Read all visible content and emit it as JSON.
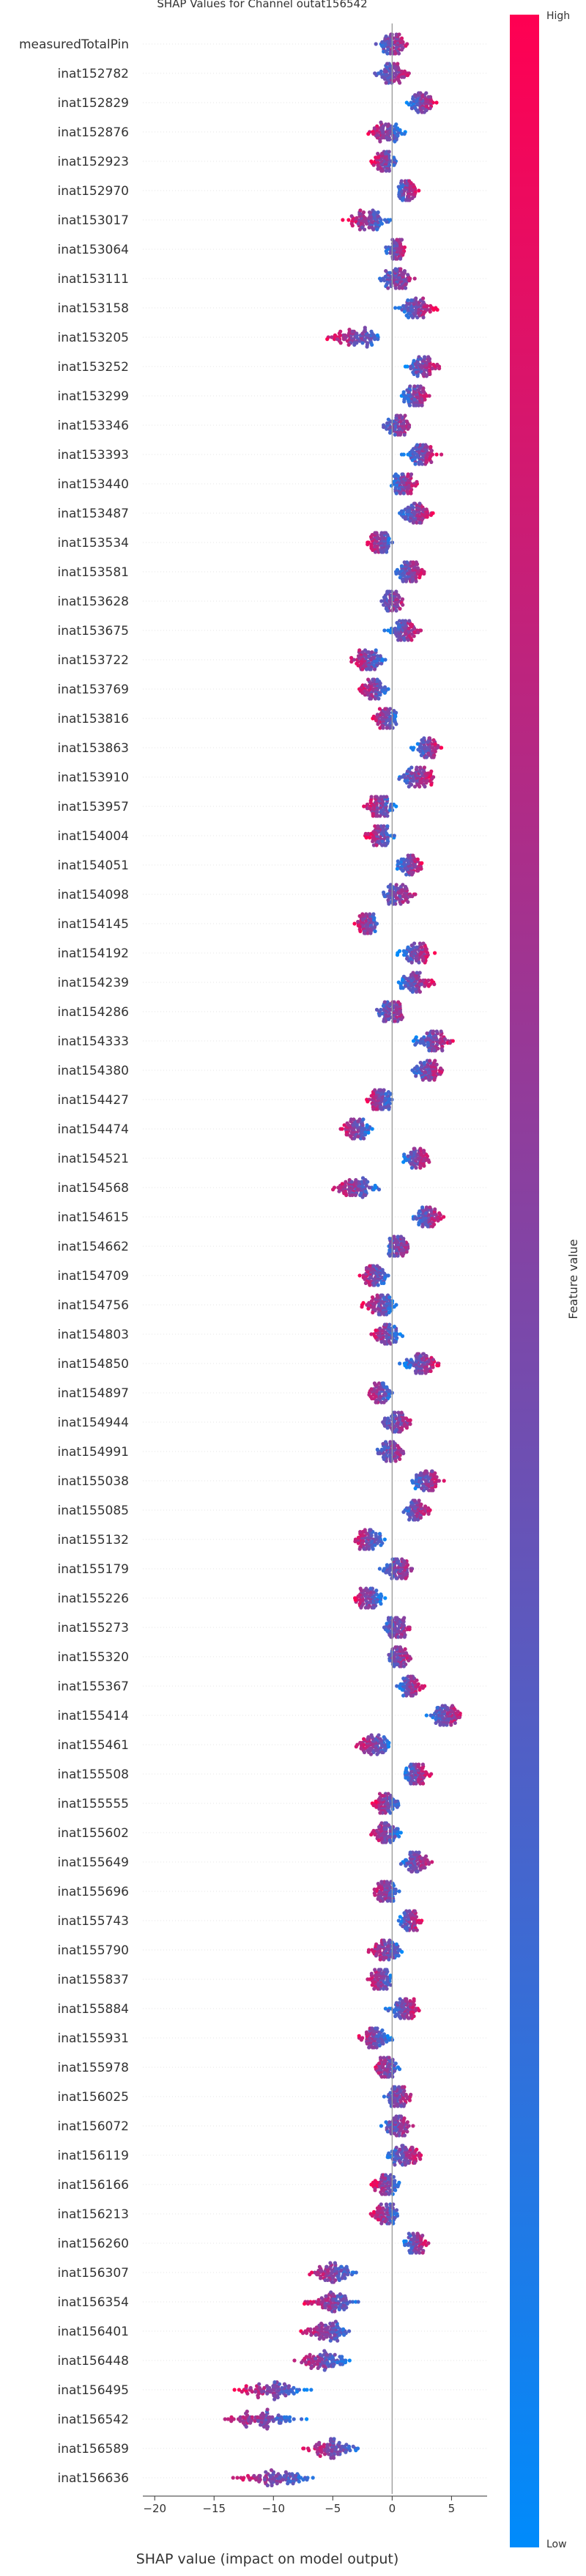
{
  "chart_data": {
    "type": "scatter",
    "subtype": "shap-beeswarm",
    "title": "SHAP Values for Channel outat156542",
    "xlabel": "SHAP value (impact on model output)",
    "xlim": [
      -21,
      8
    ],
    "xticks": [
      -20,
      -15,
      -10,
      -5,
      0,
      5
    ],
    "xtick_labels": [
      "−20",
      "−15",
      "−10",
      "−5",
      "0",
      "5"
    ],
    "colorbar": {
      "label": "Feature value",
      "high": "High",
      "low": "Low",
      "low_color": "#008bfb",
      "high_color": "#ff0052"
    },
    "zero_line_color": "#999999",
    "features": [
      {
        "name": "measuredTotalPin",
        "center": 0.0,
        "spread": 1.5
      },
      {
        "name": "inat152782",
        "center": 0.0,
        "spread": 1.8
      },
      {
        "name": "inat152829",
        "center": 2.5,
        "spread": 1.6
      },
      {
        "name": "inat152876",
        "center": -0.5,
        "spread": 1.8
      },
      {
        "name": "inat152923",
        "center": -0.5,
        "spread": 1.4
      },
      {
        "name": "inat152970",
        "center": 1.2,
        "spread": 1.2
      },
      {
        "name": "inat153017",
        "center": -2.0,
        "spread": 2.5
      },
      {
        "name": "inat153064",
        "center": 0.3,
        "spread": 1.0
      },
      {
        "name": "inat153111",
        "center": 0.5,
        "spread": 2.0
      },
      {
        "name": "inat153158",
        "center": 2.0,
        "spread": 2.0
      },
      {
        "name": "inat153205",
        "center": -3.0,
        "spread": 3.0
      },
      {
        "name": "inat153252",
        "center": 2.5,
        "spread": 1.8
      },
      {
        "name": "inat153299",
        "center": 2.0,
        "spread": 1.5
      },
      {
        "name": "inat153346",
        "center": 0.5,
        "spread": 1.5
      },
      {
        "name": "inat153393",
        "center": 2.5,
        "spread": 1.8
      },
      {
        "name": "inat153440",
        "center": 1.0,
        "spread": 1.5
      },
      {
        "name": "inat153487",
        "center": 2.0,
        "spread": 2.0
      },
      {
        "name": "inat153534",
        "center": -1.0,
        "spread": 1.5
      },
      {
        "name": "inat153581",
        "center": 1.5,
        "spread": 1.5
      },
      {
        "name": "inat153628",
        "center": 0.0,
        "spread": 1.2
      },
      {
        "name": "inat153675",
        "center": 1.0,
        "spread": 1.8
      },
      {
        "name": "inat153722",
        "center": -2.0,
        "spread": 2.0
      },
      {
        "name": "inat153769",
        "center": -1.5,
        "spread": 1.5
      },
      {
        "name": "inat153816",
        "center": -0.5,
        "spread": 1.5
      },
      {
        "name": "inat153863",
        "center": 3.0,
        "spread": 1.5
      },
      {
        "name": "inat153910",
        "center": 2.0,
        "spread": 2.0
      },
      {
        "name": "inat153957",
        "center": -1.0,
        "spread": 1.8
      },
      {
        "name": "inat154004",
        "center": -1.0,
        "spread": 1.5
      },
      {
        "name": "inat154051",
        "center": 1.5,
        "spread": 1.4
      },
      {
        "name": "inat154098",
        "center": 0.5,
        "spread": 1.6
      },
      {
        "name": "inat154145",
        "center": -2.0,
        "spread": 1.4
      },
      {
        "name": "inat154192",
        "center": 2.0,
        "spread": 1.8
      },
      {
        "name": "inat154239",
        "center": 2.0,
        "spread": 2.0
      },
      {
        "name": "inat154286",
        "center": 0.0,
        "spread": 1.6
      },
      {
        "name": "inat154333",
        "center": 3.5,
        "spread": 2.2
      },
      {
        "name": "inat154380",
        "center": 3.0,
        "spread": 2.0
      },
      {
        "name": "inat154427",
        "center": -1.0,
        "spread": 1.5
      },
      {
        "name": "inat154474",
        "center": -3.0,
        "spread": 1.6
      },
      {
        "name": "inat154521",
        "center": 2.0,
        "spread": 1.5
      },
      {
        "name": "inat154568",
        "center": -3.0,
        "spread": 2.6
      },
      {
        "name": "inat154615",
        "center": 3.0,
        "spread": 1.6
      },
      {
        "name": "inat154662",
        "center": 0.5,
        "spread": 1.4
      },
      {
        "name": "inat154709",
        "center": -1.5,
        "spread": 1.6
      },
      {
        "name": "inat154756",
        "center": -1.0,
        "spread": 1.8
      },
      {
        "name": "inat154803",
        "center": -0.5,
        "spread": 1.6
      },
      {
        "name": "inat154850",
        "center": 2.5,
        "spread": 2.0
      },
      {
        "name": "inat154897",
        "center": -1.0,
        "spread": 1.3
      },
      {
        "name": "inat154944",
        "center": 0.5,
        "spread": 1.8
      },
      {
        "name": "inat154991",
        "center": 0.0,
        "spread": 1.6
      },
      {
        "name": "inat155038",
        "center": 3.0,
        "spread": 1.8
      },
      {
        "name": "inat155085",
        "center": 2.0,
        "spread": 1.6
      },
      {
        "name": "inat155132",
        "center": -2.0,
        "spread": 1.8
      },
      {
        "name": "inat155179",
        "center": 0.5,
        "spread": 1.8
      },
      {
        "name": "inat155226",
        "center": -2.0,
        "spread": 1.5
      },
      {
        "name": "inat155273",
        "center": 0.5,
        "spread": 1.6
      },
      {
        "name": "inat155320",
        "center": 0.5,
        "spread": 1.4
      },
      {
        "name": "inat155367",
        "center": 1.5,
        "spread": 1.4
      },
      {
        "name": "inat155414",
        "center": 4.5,
        "spread": 2.0
      },
      {
        "name": "inat155461",
        "center": -1.5,
        "spread": 2.0
      },
      {
        "name": "inat155508",
        "center": 2.0,
        "spread": 1.5
      },
      {
        "name": "inat155555",
        "center": -0.5,
        "spread": 1.4
      },
      {
        "name": "inat155602",
        "center": -0.5,
        "spread": 1.6
      },
      {
        "name": "inat155649",
        "center": 2.0,
        "spread": 2.0
      },
      {
        "name": "inat155696",
        "center": -0.5,
        "spread": 1.5
      },
      {
        "name": "inat155743",
        "center": 1.5,
        "spread": 1.2
      },
      {
        "name": "inat155790",
        "center": -0.5,
        "spread": 1.8
      },
      {
        "name": "inat155837",
        "center": -1.0,
        "spread": 1.5
      },
      {
        "name": "inat155884",
        "center": 1.0,
        "spread": 1.8
      },
      {
        "name": "inat155931",
        "center": -1.5,
        "spread": 1.8
      },
      {
        "name": "inat155978",
        "center": -0.5,
        "spread": 1.6
      },
      {
        "name": "inat156025",
        "center": 0.5,
        "spread": 1.4
      },
      {
        "name": "inat156072",
        "center": 0.5,
        "spread": 1.6
      },
      {
        "name": "inat156119",
        "center": 1.0,
        "spread": 2.0
      },
      {
        "name": "inat156166",
        "center": -0.5,
        "spread": 1.4
      },
      {
        "name": "inat156213",
        "center": -0.5,
        "spread": 1.5
      },
      {
        "name": "inat156260",
        "center": 2.0,
        "spread": 1.4
      },
      {
        "name": "inat156307",
        "center": -5.0,
        "spread": 2.6
      },
      {
        "name": "inat156354",
        "center": -5.0,
        "spread": 3.0
      },
      {
        "name": "inat156401",
        "center": -5.5,
        "spread": 2.6
      },
      {
        "name": "inat156448",
        "center": -6.0,
        "spread": 3.0
      },
      {
        "name": "inat156495",
        "center": -10.0,
        "spread": 4.0
      },
      {
        "name": "inat156542",
        "center": -11.0,
        "spread": 4.5
      },
      {
        "name": "inat156589",
        "center": -5.0,
        "spread": 3.0
      },
      {
        "name": "inat156636",
        "center": -10.0,
        "spread": 4.0
      }
    ]
  }
}
